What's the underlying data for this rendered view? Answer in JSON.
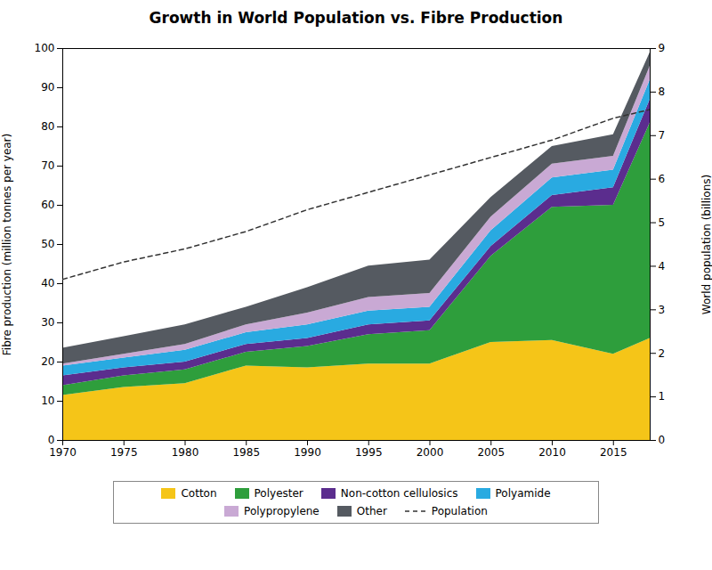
{
  "chart_data": {
    "type": "area",
    "title": "Growth in World Population vs. Fibre Production",
    "x": [
      1970,
      1975,
      1980,
      1985,
      1990,
      1995,
      2000,
      2005,
      2010,
      2015,
      2018
    ],
    "xlim": [
      1970,
      2018
    ],
    "xticks": [
      1970,
      1975,
      1980,
      1985,
      1990,
      1995,
      2000,
      2005,
      2010,
      2015
    ],
    "ylabel": "Fibre production (million tonnes per year)",
    "ylim": [
      0,
      100
    ],
    "yticks": [
      0,
      10,
      20,
      30,
      40,
      50,
      60,
      70,
      80,
      90,
      100
    ],
    "y2label": "World population (billions)",
    "y2lim": [
      0,
      9
    ],
    "y2ticks": [
      0,
      1,
      2,
      3,
      4,
      5,
      6,
      7,
      8,
      9
    ],
    "stacked": true,
    "grid": false,
    "legend": "bottom",
    "series": [
      {
        "name": "Cotton",
        "color": "#f5c518",
        "values": [
          11.5,
          13.5,
          14.5,
          19.0,
          18.5,
          19.5,
          19.5,
          25.0,
          25.5,
          22.0,
          26.0
        ]
      },
      {
        "name": "Polyester",
        "color": "#2e9e3c",
        "values": [
          2.5,
          3.0,
          3.5,
          3.5,
          5.5,
          7.5,
          8.5,
          22.0,
          34.0,
          38.0,
          55.0
        ]
      },
      {
        "name": "Non-cotton cellulosics",
        "color": "#5b2d8e",
        "values": [
          2.5,
          2.0,
          2.0,
          2.0,
          2.0,
          2.5,
          2.5,
          2.5,
          3.0,
          4.5,
          6.0
        ]
      },
      {
        "name": "Polyamide",
        "color": "#29aae1",
        "values": [
          2.5,
          2.5,
          3.0,
          3.0,
          3.5,
          3.5,
          3.5,
          4.0,
          4.5,
          4.5,
          5.0
        ]
      },
      {
        "name": "Polypropylene",
        "color": "#c9a9d4",
        "values": [
          0.5,
          1.0,
          1.5,
          2.0,
          3.0,
          3.5,
          3.5,
          3.5,
          3.5,
          3.5,
          3.5
        ]
      },
      {
        "name": "Other",
        "color": "#555a61",
        "values": [
          4.0,
          4.5,
          5.0,
          4.5,
          6.5,
          8.0,
          8.5,
          5.0,
          4.5,
          5.5,
          3.5
        ]
      },
      {
        "name": "Population",
        "color": "#333333",
        "type": "line",
        "line_style": "dashed",
        "axis": "y2",
        "values": [
          3.7,
          4.1,
          4.4,
          4.8,
          5.3,
          5.7,
          6.1,
          6.5,
          6.9,
          7.4,
          7.6
        ]
      }
    ]
  }
}
